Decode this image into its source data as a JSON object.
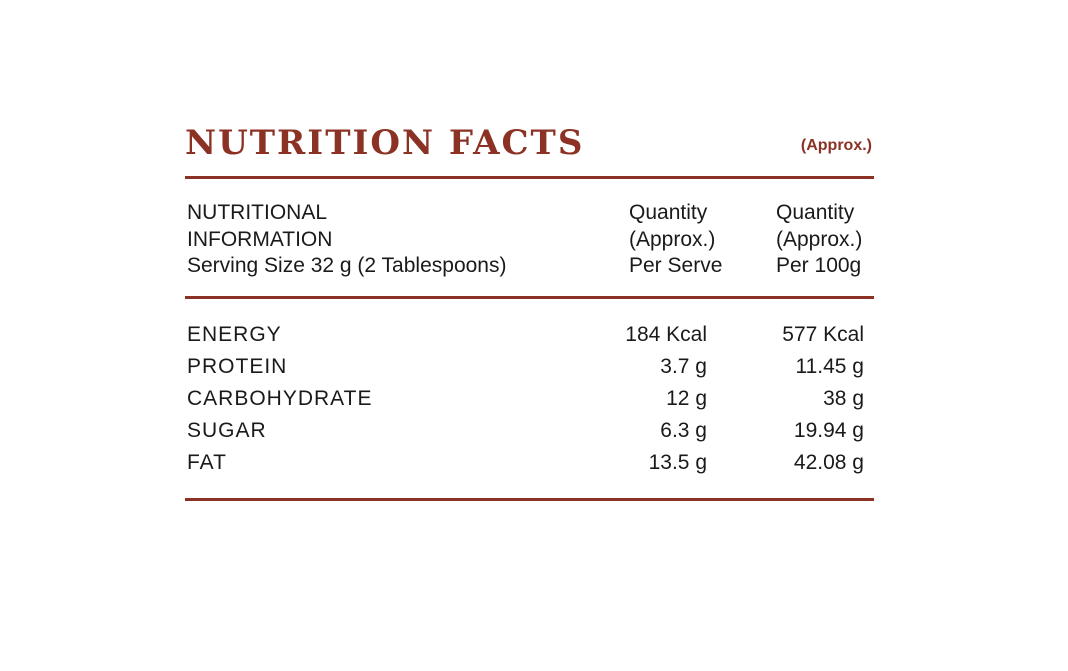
{
  "title": "NUTRITION FACTS",
  "approx_note": "(Approx.)",
  "header": {
    "left": [
      "NUTRITIONAL",
      "INFORMATION",
      "Serving Size 32 g (2 Tablespoons)"
    ],
    "per_serve": [
      "Quantity",
      "(Approx.)",
      "Per Serve"
    ],
    "per_100g": [
      "Quantity",
      "(Approx.)",
      "Per 100g"
    ]
  },
  "rows": [
    {
      "label": "ENERGY",
      "per_serve": "184 Kcal",
      "per_100g": "577 Kcal"
    },
    {
      "label": "PROTEIN",
      "per_serve": "3.7 g",
      "per_100g": "11.45 g"
    },
    {
      "label": "CARBOHYDRATE",
      "per_serve": "12 g",
      "per_100g": "38 g"
    },
    {
      "label": "SUGAR",
      "per_serve": "6.3 g",
      "per_100g": "19.94 g"
    },
    {
      "label": "FAT",
      "per_serve": "13.5 g",
      "per_100g": "42.08 g"
    }
  ],
  "colors": {
    "accent": "#8b3224",
    "text": "#1a1a1a"
  }
}
